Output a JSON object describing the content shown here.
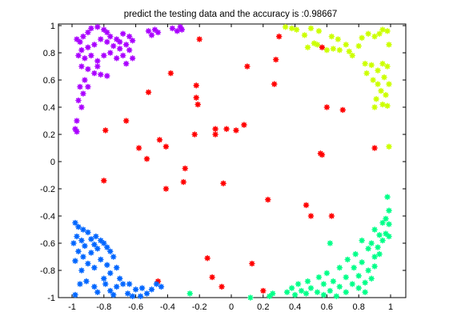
{
  "chart_data": {
    "type": "scatter",
    "title": "predict the testing data and the accuracy is :0.98667",
    "xlabel": "",
    "ylabel": "",
    "xlim": [
      -1,
      1
    ],
    "ylim": [
      -1,
      1
    ],
    "x_ticks": [
      -1,
      -0.8,
      -0.6,
      -0.4,
      -0.2,
      0,
      0.2,
      0.4,
      0.6,
      0.8,
      1
    ],
    "x_tick_labels": [
      "-1",
      "-0.8",
      "-0.6",
      "-0.4",
      "-0.2",
      "0",
      "0.2",
      "0.4",
      "0.6",
      "0.8",
      "1"
    ],
    "y_ticks": [
      -1,
      -0.8,
      -0.6,
      -0.4,
      -0.2,
      0,
      0.2,
      0.4,
      0.6,
      0.8,
      1
    ],
    "y_tick_labels": [
      "-1",
      "-0.8",
      "-0.6",
      "-0.4",
      "-0.2",
      "0",
      "0.2",
      "0.4",
      "0.6",
      "0.8",
      "1"
    ],
    "grid": false,
    "legend": "none",
    "marker": "star",
    "series": [
      {
        "color": "#ff0000",
        "points": [
          [
            -0.2,
            0.9
          ],
          [
            0.1,
            0.7
          ],
          [
            0.28,
            0.75
          ],
          [
            0.3,
            0.92
          ],
          [
            0.27,
            0.57
          ],
          [
            -0.38,
            0.65
          ],
          [
            -0.22,
            0.56
          ],
          [
            -0.22,
            0.47
          ],
          [
            -0.21,
            0.42
          ],
          [
            -0.52,
            0.51
          ],
          [
            -0.66,
            0.3
          ],
          [
            -0.79,
            0.23
          ],
          [
            -0.58,
            0.1
          ],
          [
            -0.53,
            0.02
          ],
          [
            -0.45,
            0.16
          ],
          [
            -0.41,
            0.11
          ],
          [
            -0.23,
            0.2
          ],
          [
            -0.1,
            0.24
          ],
          [
            -0.1,
            0.2
          ],
          [
            -0.03,
            0.24
          ],
          [
            0.03,
            0.23
          ],
          [
            0.08,
            0.27
          ],
          [
            -0.29,
            -0.05
          ],
          [
            -0.3,
            -0.15
          ],
          [
            -0.41,
            -0.2
          ],
          [
            -0.05,
            -0.16
          ],
          [
            0.23,
            -0.28
          ],
          [
            0.47,
            -0.32
          ],
          [
            0.5,
            -0.4
          ],
          [
            0.56,
            0.06
          ],
          [
            0.57,
            0.05
          ],
          [
            0.63,
            -0.4
          ],
          [
            0.6,
            0.4
          ],
          [
            0.7,
            0.38
          ],
          [
            0.9,
            0.1
          ],
          [
            0.57,
            0.84
          ],
          [
            -0.8,
            -0.14
          ],
          [
            -0.15,
            -0.71
          ],
          [
            -0.12,
            -0.85
          ],
          [
            -0.06,
            -0.92
          ],
          [
            0.13,
            -0.75
          ],
          [
            0.2,
            -0.95
          ],
          [
            -0.46,
            -0.88
          ]
        ]
      },
      {
        "color": "#ccff00",
        "points": [
          [
            0.34,
            0.99
          ],
          [
            0.38,
            0.98
          ],
          [
            0.41,
            0.97
          ],
          [
            0.46,
            0.93
          ],
          [
            0.5,
            0.98
          ],
          [
            0.55,
            0.96
          ],
          [
            0.52,
            0.87
          ],
          [
            0.48,
            0.84
          ],
          [
            0.54,
            0.86
          ],
          [
            0.6,
            0.82
          ],
          [
            0.64,
            0.83
          ],
          [
            0.68,
            0.82
          ],
          [
            0.63,
            0.92
          ],
          [
            0.67,
            0.9
          ],
          [
            0.72,
            0.86
          ],
          [
            0.74,
            0.81
          ],
          [
            0.76,
            0.78
          ],
          [
            0.8,
            0.85
          ],
          [
            0.82,
            0.91
          ],
          [
            0.86,
            0.94
          ],
          [
            0.9,
            0.92
          ],
          [
            0.93,
            0.94
          ],
          [
            0.95,
            0.97
          ],
          [
            0.98,
            0.96
          ],
          [
            0.84,
            0.72
          ],
          [
            0.88,
            0.71
          ],
          [
            0.92,
            0.67
          ],
          [
            0.95,
            0.72
          ],
          [
            0.98,
            0.7
          ],
          [
            0.85,
            0.65
          ],
          [
            0.89,
            0.6
          ],
          [
            0.92,
            0.57
          ],
          [
            0.96,
            0.62
          ],
          [
            0.99,
            0.57
          ],
          [
            0.94,
            0.52
          ],
          [
            0.97,
            0.49
          ],
          [
            0.91,
            0.46
          ],
          [
            0.95,
            0.42
          ],
          [
            0.98,
            0.41
          ],
          [
            0.9,
            0.4
          ],
          [
            0.99,
            0.11
          ],
          [
            0.99,
            0.86
          ]
        ]
      },
      {
        "color": "#00ff88",
        "points": [
          [
            0.98,
            -0.26
          ],
          [
            0.99,
            -0.36
          ],
          [
            0.97,
            -0.42
          ],
          [
            0.99,
            -0.46
          ],
          [
            0.95,
            -0.45
          ],
          [
            0.9,
            -0.5
          ],
          [
            0.93,
            -0.54
          ],
          [
            0.97,
            -0.53
          ],
          [
            0.99,
            -0.55
          ],
          [
            0.88,
            -0.6
          ],
          [
            0.92,
            -0.63
          ],
          [
            0.95,
            -0.58
          ],
          [
            0.82,
            -0.58
          ],
          [
            0.86,
            -0.64
          ],
          [
            0.9,
            -0.7
          ],
          [
            0.93,
            -0.68
          ],
          [
            0.78,
            -0.68
          ],
          [
            0.82,
            -0.74
          ],
          [
            0.86,
            -0.8
          ],
          [
            0.9,
            -0.77
          ],
          [
            0.73,
            -0.72
          ],
          [
            0.77,
            -0.78
          ],
          [
            0.8,
            -0.84
          ],
          [
            0.84,
            -0.89
          ],
          [
            0.88,
            -0.86
          ],
          [
            0.68,
            -0.78
          ],
          [
            0.72,
            -0.85
          ],
          [
            0.76,
            -0.9
          ],
          [
            0.8,
            -0.93
          ],
          [
            0.84,
            -0.96
          ],
          [
            0.6,
            -0.82
          ],
          [
            0.64,
            -0.88
          ],
          [
            0.68,
            -0.92
          ],
          [
            0.72,
            -0.96
          ],
          [
            0.55,
            -0.85
          ],
          [
            0.58,
            -0.9
          ],
          [
            0.62,
            -0.95
          ],
          [
            0.66,
            -0.99
          ],
          [
            0.48,
            -0.88
          ],
          [
            0.5,
            -0.93
          ],
          [
            0.54,
            -0.96
          ],
          [
            0.58,
            -0.98
          ],
          [
            0.42,
            -0.9
          ],
          [
            0.44,
            -0.95
          ],
          [
            0.47,
            -0.97
          ],
          [
            0.38,
            -0.93
          ],
          [
            0.4,
            -0.98
          ],
          [
            0.35,
            -0.96
          ],
          [
            0.26,
            -0.97
          ],
          [
            0.24,
            -0.99
          ],
          [
            0.12,
            -1.0
          ],
          [
            -0.26,
            -0.97
          ],
          [
            0.62,
            -0.6
          ]
        ]
      },
      {
        "color": "#0066ff",
        "points": [
          [
            -0.98,
            -0.45
          ],
          [
            -0.96,
            -0.48
          ],
          [
            -0.93,
            -0.5
          ],
          [
            -0.9,
            -0.52
          ],
          [
            -0.97,
            -0.55
          ],
          [
            -0.94,
            -0.58
          ],
          [
            -0.99,
            -0.6
          ],
          [
            -0.92,
            -0.62
          ],
          [
            -0.88,
            -0.57
          ],
          [
            -0.85,
            -0.55
          ],
          [
            -0.82,
            -0.58
          ],
          [
            -0.86,
            -0.61
          ],
          [
            -0.84,
            -0.64
          ],
          [
            -0.8,
            -0.6
          ],
          [
            -0.78,
            -0.63
          ],
          [
            -0.76,
            -0.66
          ],
          [
            -0.88,
            -0.67
          ],
          [
            -0.96,
            -0.66
          ],
          [
            -0.93,
            -0.7
          ],
          [
            -0.98,
            -0.73
          ],
          [
            -0.9,
            -0.75
          ],
          [
            -0.94,
            -0.8
          ],
          [
            -0.86,
            -0.78
          ],
          [
            -0.82,
            -0.72
          ],
          [
            -0.78,
            -0.76
          ],
          [
            -0.74,
            -0.7
          ],
          [
            -0.72,
            -0.78
          ],
          [
            -0.76,
            -0.82
          ],
          [
            -0.8,
            -0.86
          ],
          [
            -0.7,
            -0.86
          ],
          [
            -0.68,
            -0.9
          ],
          [
            -0.72,
            -0.92
          ],
          [
            -0.64,
            -0.9
          ],
          [
            -0.6,
            -0.94
          ],
          [
            -0.65,
            -0.97
          ],
          [
            -0.62,
            -0.99
          ],
          [
            -0.56,
            -0.93
          ],
          [
            -0.53,
            -0.97
          ],
          [
            -0.5,
            -0.94
          ],
          [
            -0.47,
            -0.9
          ],
          [
            -0.44,
            -0.92
          ],
          [
            -0.57,
            -0.99
          ],
          [
            -0.98,
            -0.98
          ],
          [
            -0.95,
            -0.9
          ],
          [
            -0.91,
            -0.88
          ],
          [
            -0.86,
            -0.92
          ],
          [
            -0.84,
            -0.96
          ],
          [
            -0.79,
            -0.9
          ],
          [
            -0.76,
            -0.95
          ],
          [
            -0.74,
            -0.98
          ]
        ]
      },
      {
        "color": "#aa00ff",
        "points": [
          [
            -0.97,
            0.9
          ],
          [
            -0.95,
            0.88
          ],
          [
            -0.93,
            0.92
          ],
          [
            -0.9,
            0.95
          ],
          [
            -0.88,
            0.98
          ],
          [
            -0.84,
            0.99
          ],
          [
            -0.8,
            0.97
          ],
          [
            -0.78,
            0.95
          ],
          [
            -0.76,
            0.92
          ],
          [
            -0.72,
            0.9
          ],
          [
            -0.7,
            0.88
          ],
          [
            -0.68,
            0.94
          ],
          [
            -0.64,
            0.92
          ],
          [
            -0.62,
            0.89
          ],
          [
            -0.66,
            0.86
          ],
          [
            -0.7,
            0.83
          ],
          [
            -0.74,
            0.85
          ],
          [
            -0.78,
            0.88
          ],
          [
            -0.82,
            0.9
          ],
          [
            -0.86,
            0.86
          ],
          [
            -0.9,
            0.84
          ],
          [
            -0.94,
            0.82
          ],
          [
            -0.96,
            0.78
          ],
          [
            -0.92,
            0.76
          ],
          [
            -0.88,
            0.78
          ],
          [
            -0.84,
            0.74
          ],
          [
            -0.8,
            0.78
          ],
          [
            -0.76,
            0.8
          ],
          [
            -0.72,
            0.76
          ],
          [
            -0.68,
            0.78
          ],
          [
            -0.64,
            0.82
          ],
          [
            -0.62,
            0.76
          ],
          [
            -0.66,
            0.72
          ],
          [
            -0.94,
            0.7
          ],
          [
            -0.9,
            0.68
          ],
          [
            -0.86,
            0.65
          ],
          [
            -0.82,
            0.64
          ],
          [
            -0.78,
            0.63
          ],
          [
            -0.92,
            0.6
          ],
          [
            -0.95,
            0.55
          ],
          [
            -0.93,
            0.5
          ],
          [
            -0.96,
            0.45
          ],
          [
            -0.94,
            0.4
          ],
          [
            -0.97,
            0.3
          ],
          [
            -0.98,
            0.24
          ],
          [
            -0.97,
            0.22
          ],
          [
            -0.52,
            0.96
          ],
          [
            -0.5,
            0.93
          ],
          [
            -0.48,
            0.97
          ],
          [
            -0.46,
            0.95
          ],
          [
            -0.37,
            0.98
          ],
          [
            -0.34,
            0.96
          ],
          [
            -0.32,
            0.99
          ],
          [
            -0.31,
            0.97
          ],
          [
            -0.9,
            0.55
          ],
          [
            -0.84,
            0.7
          ]
        ]
      }
    ]
  }
}
